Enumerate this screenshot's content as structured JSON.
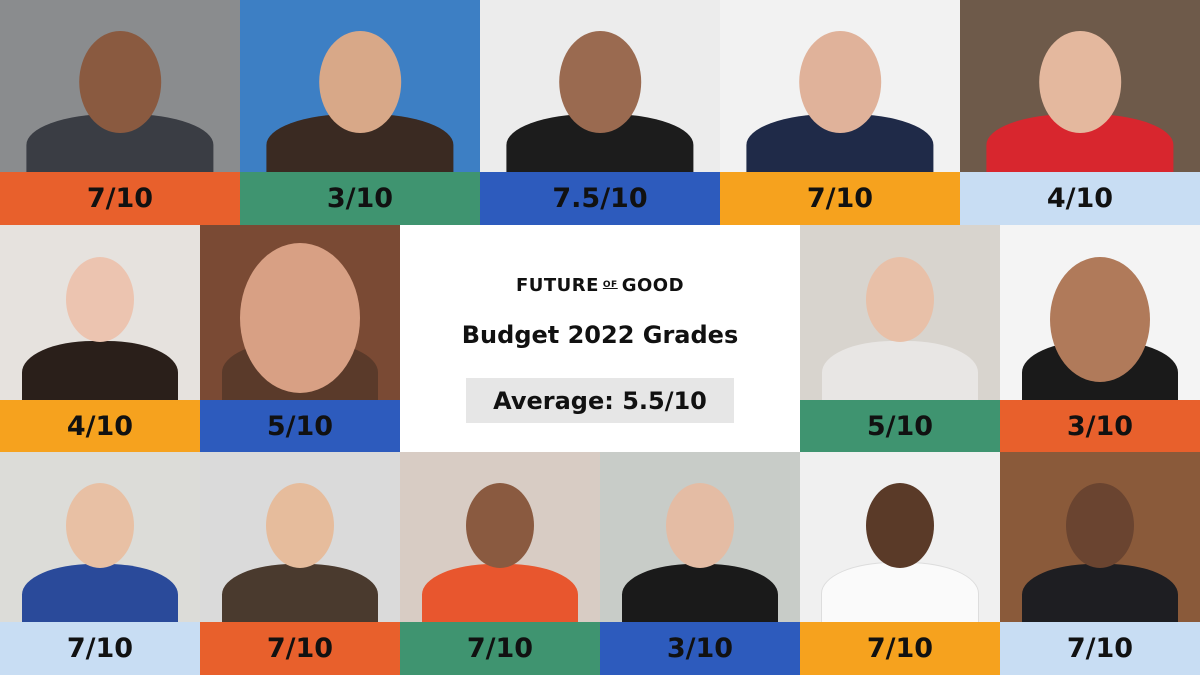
{
  "header": {
    "logo_text": "FUTURE OF GOOD",
    "logo_parts": [
      "FUTURE",
      "OF",
      "GOOD"
    ],
    "title": "Budget 2022 Grades",
    "average": "Average: 5.5/10"
  },
  "colors": {
    "orange": "#e8602c",
    "green": "#3f9470",
    "blue": "#2d5bbd",
    "amber": "#f6a21e",
    "light_blue": "#c8ddf3"
  },
  "grades": [
    {
      "grade": "7/10",
      "color": "orange"
    },
    {
      "grade": "3/10",
      "color": "green"
    },
    {
      "grade": "7.5/10",
      "color": "blue"
    },
    {
      "grade": "7/10",
      "color": "amber"
    },
    {
      "grade": "4/10",
      "color": "light_blue"
    },
    {
      "grade": "4/10",
      "color": "amber"
    },
    {
      "grade": "5/10",
      "color": "blue"
    },
    {
      "grade": "5/10",
      "color": "green"
    },
    {
      "grade": "3/10",
      "color": "orange"
    },
    {
      "grade": "7/10",
      "color": "light_blue"
    },
    {
      "grade": "7/10",
      "color": "orange"
    },
    {
      "grade": "7/10",
      "color": "green"
    },
    {
      "grade": "3/10",
      "color": "blue"
    },
    {
      "grade": "7/10",
      "color": "amber"
    },
    {
      "grade": "7/10",
      "color": "light_blue"
    }
  ]
}
